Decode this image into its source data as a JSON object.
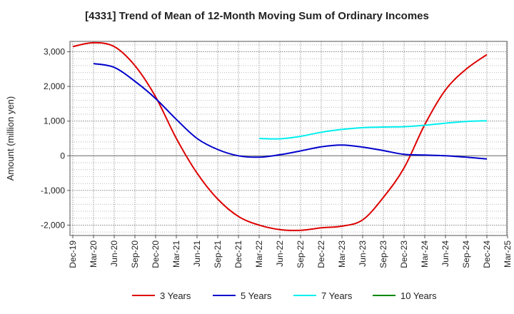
{
  "chart_data": {
    "type": "line",
    "title": "[4331]  Trend of Mean of 12-Month Moving Sum of Ordinary Incomes",
    "xlabel": "",
    "ylabel": "Amount (million yen)",
    "ylim": [
      -2300,
      3300
    ],
    "yticks": [
      3000,
      2000,
      1000,
      0,
      -1000,
      -2000
    ],
    "ytick_labels": [
      "3,000",
      "2,000",
      "1,000",
      "0",
      "-1,000",
      "-2,000"
    ],
    "x_tick_labels": [
      "Dec-19",
      "Mar-20",
      "Jun-20",
      "Sep-20",
      "Dec-20",
      "Mar-21",
      "Jun-21",
      "Sep-21",
      "Dec-21",
      "Mar-22",
      "Jun-22",
      "Sep-22",
      "Dec-22",
      "Mar-23",
      "Jun-23",
      "Sep-23",
      "Dec-23",
      "Mar-24",
      "Jun-24",
      "Sep-24",
      "Dec-24",
      "Mar-25"
    ],
    "grid": true,
    "legend_position": "bottom",
    "series": [
      {
        "name": "3 Years",
        "color": "#dd0000",
        "points": [
          [
            0,
            3150
          ],
          [
            1,
            3260
          ],
          [
            2,
            3150
          ],
          [
            3,
            2600
          ],
          [
            4,
            1700
          ],
          [
            5,
            500
          ],
          [
            6,
            -500
          ],
          [
            7,
            -1250
          ],
          [
            8,
            -1750
          ],
          [
            9,
            -2000
          ],
          [
            10,
            -2130
          ],
          [
            11,
            -2150
          ],
          [
            12,
            -2080
          ],
          [
            13,
            -2030
          ],
          [
            14,
            -1850
          ],
          [
            15,
            -1200
          ],
          [
            16,
            -350
          ],
          [
            17,
            900
          ],
          [
            18,
            1900
          ],
          [
            19,
            2500
          ],
          [
            20,
            2920
          ]
        ]
      },
      {
        "name": "5 Years",
        "color": "#0000cc",
        "points": [
          [
            1,
            2660
          ],
          [
            2,
            2550
          ],
          [
            3,
            2150
          ],
          [
            4,
            1650
          ],
          [
            5,
            1050
          ],
          [
            6,
            500
          ],
          [
            7,
            180
          ],
          [
            8,
            0
          ],
          [
            9,
            -40
          ],
          [
            10,
            30
          ],
          [
            11,
            140
          ],
          [
            12,
            260
          ],
          [
            13,
            310
          ],
          [
            14,
            250
          ],
          [
            15,
            150
          ],
          [
            16,
            40
          ],
          [
            17,
            20
          ],
          [
            18,
            0
          ],
          [
            19,
            -40
          ],
          [
            20,
            -90
          ]
        ]
      },
      {
        "name": "7 Years",
        "color": "#00eeee",
        "points": [
          [
            9,
            500
          ],
          [
            10,
            490
          ],
          [
            11,
            560
          ],
          [
            12,
            680
          ],
          [
            13,
            760
          ],
          [
            14,
            810
          ],
          [
            15,
            830
          ],
          [
            16,
            840
          ],
          [
            17,
            880
          ],
          [
            18,
            940
          ],
          [
            19,
            990
          ],
          [
            20,
            1010
          ]
        ]
      },
      {
        "name": "10 Years",
        "color": "#008800",
        "points": []
      }
    ]
  }
}
